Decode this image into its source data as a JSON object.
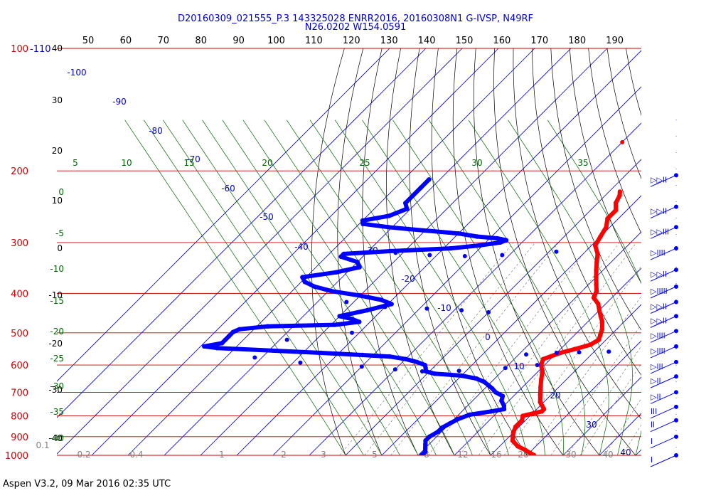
{
  "header": {
    "line1": "D20160309_021555_P.3 143325028 ENRR2016, 20160308N1 G-IVSP, N49RF",
    "line2": "N26.0202 W154.0591"
  },
  "footer": {
    "text": "Aspen V3.2, 09 Mar 2016  02:35 UTC"
  },
  "colors": {
    "temperature": "#ff0000",
    "dewpoint": "#0000ff",
    "isobar": "#cc0000",
    "isotherm": "#0000cc",
    "dry_adiabat": "#000000",
    "moist_adiabat": "#006400",
    "mixing_ratio": "#808080"
  },
  "chart_data": {
    "type": "skew-t",
    "pressure_axis": {
      "levels_hpa": [
        100,
        200,
        300,
        400,
        500,
        600,
        700,
        800,
        900,
        1000
      ],
      "top_tick_extra_label": "-110",
      "altitude_labels_kft": [
        "40",
        "30",
        "20",
        "10",
        "0",
        "-10",
        "-20",
        "-30",
        "-40"
      ]
    },
    "top_axis_labels": [
      "50",
      "60",
      "70",
      "80",
      "90",
      "100",
      "110",
      "120",
      "130",
      "140",
      "150",
      "160",
      "170",
      "180",
      "190"
    ],
    "isotherm_labels": [
      "-100",
      "-90",
      "-80",
      "-70",
      "-60",
      "-50",
      "-40",
      "-30",
      "-20",
      "-10",
      "0",
      "10",
      "20",
      "30",
      "40"
    ],
    "moist_adiabat_labels_top": [
      "5",
      "10",
      "15",
      "20",
      "25",
      "30",
      "35"
    ],
    "moist_adiabat_labels_left": [
      "0",
      "-5",
      "-10",
      "-15",
      "-20",
      "-25",
      "-30",
      "-35",
      "-40"
    ],
    "mixing_ratio_labels": [
      "0.1",
      "0.2",
      "0.4",
      "1",
      "2",
      "3",
      "5",
      "8",
      "12",
      "16",
      "20",
      "30",
      "40"
    ],
    "series": [
      {
        "name": "Temperature",
        "points": [
          [
            225,
            -37
          ],
          [
            230,
            -36
          ],
          [
            240,
            -35
          ],
          [
            250,
            -33
          ],
          [
            262,
            -33
          ],
          [
            275,
            -31
          ],
          [
            290,
            -30
          ],
          [
            305,
            -29
          ],
          [
            320,
            -26
          ],
          [
            335,
            -24
          ],
          [
            350,
            -22
          ],
          [
            365,
            -20
          ],
          [
            380,
            -18
          ],
          [
            395,
            -16
          ],
          [
            410,
            -15
          ],
          [
            425,
            -12
          ],
          [
            440,
            -10
          ],
          [
            455,
            -8
          ],
          [
            470,
            -6
          ],
          [
            490,
            -4
          ],
          [
            505,
            -3
          ],
          [
            520,
            -2
          ],
          [
            535,
            -3
          ],
          [
            548,
            -6
          ],
          [
            560,
            -9
          ],
          [
            580,
            -12
          ],
          [
            600,
            -11
          ],
          [
            620,
            -9
          ],
          [
            650,
            -7
          ],
          [
            680,
            -5
          ],
          [
            710,
            -3
          ],
          [
            740,
            -1
          ],
          [
            770,
            2
          ],
          [
            780,
            2
          ],
          [
            790,
            0
          ],
          [
            800,
            -2
          ],
          [
            820,
            -1
          ],
          [
            850,
            -1
          ],
          [
            880,
            0
          ],
          [
            920,
            2
          ],
          [
            950,
            5
          ],
          [
            970,
            8
          ],
          [
            1000,
            12
          ]
        ],
        "outlier": [
          170,
          -50
        ]
      },
      {
        "name": "Dewpoint",
        "points": [
          [
            210,
            -93
          ],
          [
            220,
            -93
          ],
          [
            240,
            -93
          ],
          [
            248,
            -91
          ],
          [
            258,
            -94
          ],
          [
            265,
            -100
          ],
          [
            270,
            -99
          ],
          [
            275,
            -91
          ],
          [
            278,
            -85
          ],
          [
            285,
            -70
          ],
          [
            290,
            -64
          ],
          [
            293,
            -58
          ],
          [
            296,
            -55
          ],
          [
            300,
            -56
          ],
          [
            305,
            -61
          ],
          [
            310,
            -68
          ],
          [
            315,
            -84
          ],
          [
            320,
            -96
          ],
          [
            325,
            -96
          ],
          [
            335,
            -90
          ],
          [
            345,
            -88
          ],
          [
            355,
            -93
          ],
          [
            365,
            -101
          ],
          [
            375,
            -99
          ],
          [
            385,
            -95
          ],
          [
            395,
            -89
          ],
          [
            405,
            -80
          ],
          [
            415,
            -73
          ],
          [
            425,
            -69
          ],
          [
            440,
            -74
          ],
          [
            455,
            -80
          ],
          [
            462,
            -76
          ],
          [
            470,
            -73
          ],
          [
            478,
            -79
          ],
          [
            482,
            -97
          ],
          [
            490,
            -104
          ],
          [
            498,
            -105
          ],
          [
            510,
            -105
          ],
          [
            520,
            -105
          ],
          [
            530,
            -105
          ],
          [
            540,
            -109
          ],
          [
            545,
            -105
          ],
          [
            560,
            -75
          ],
          [
            567,
            -63
          ],
          [
            572,
            -55
          ],
          [
            580,
            -50
          ],
          [
            590,
            -46
          ],
          [
            600,
            -43
          ],
          [
            610,
            -42
          ],
          [
            622,
            -41
          ],
          [
            630,
            -38
          ],
          [
            637,
            -30
          ],
          [
            648,
            -25
          ],
          [
            660,
            -22
          ],
          [
            672,
            -20
          ],
          [
            685,
            -18
          ],
          [
            700,
            -16
          ],
          [
            715,
            -13
          ],
          [
            735,
            -12
          ],
          [
            755,
            -10
          ],
          [
            770,
            -9
          ],
          [
            780,
            -12
          ],
          [
            795,
            -17
          ],
          [
            815,
            -19
          ],
          [
            835,
            -20
          ],
          [
            855,
            -21
          ],
          [
            875,
            -21
          ],
          [
            900,
            -22
          ],
          [
            920,
            -22
          ],
          [
            940,
            -21
          ],
          [
            960,
            -20
          ],
          [
            980,
            -19
          ],
          [
            1000,
            -19
          ]
        ],
        "sparse_points": [
          [
            318,
            -82
          ],
          [
            322,
            -72
          ],
          [
            324,
            -62
          ],
          [
            322,
            -52
          ],
          [
            316,
            -38
          ],
          [
            420,
            -82
          ],
          [
            432,
            -70
          ],
          [
            436,
            -58
          ],
          [
            440,
            -48
          ],
          [
            445,
            -40
          ],
          [
            500,
            -72
          ],
          [
            520,
            -88
          ],
          [
            575,
            -92
          ],
          [
            592,
            -78
          ],
          [
            605,
            -60
          ],
          [
            615,
            -50
          ],
          [
            622,
            -42
          ],
          [
            620,
            -32
          ],
          [
            610,
            -20
          ],
          [
            600,
            -12
          ],
          [
            565,
            -18
          ],
          [
            560,
            -10
          ],
          [
            558,
            -4
          ],
          [
            556,
            4
          ],
          [
            558,
            14
          ],
          [
            560,
            24
          ],
          [
            565,
            30
          ]
        ]
      }
    ],
    "wind_barbs": [
      {
        "p": 205,
        "barbs": "▷▷ll"
      },
      {
        "p": 245,
        "barbs": "▷▷ll"
      },
      {
        "p": 275,
        "barbs": "▷▷lll"
      },
      {
        "p": 310,
        "barbs": "▷llll"
      },
      {
        "p": 350,
        "barbs": "▷▷ll"
      },
      {
        "p": 385,
        "barbs": "▷lllll"
      },
      {
        "p": 420,
        "barbs": "▷▷ll"
      },
      {
        "p": 455,
        "barbs": "▷▷ll"
      },
      {
        "p": 495,
        "barbs": "▷llll"
      },
      {
        "p": 540,
        "barbs": "▷llll"
      },
      {
        "p": 590,
        "barbs": "▷lll"
      },
      {
        "p": 640,
        "barbs": "▷ll"
      },
      {
        "p": 700,
        "barbs": "▷ll"
      },
      {
        "p": 760,
        "barbs": "lll"
      },
      {
        "p": 820,
        "barbs": "ll"
      },
      {
        "p": 900,
        "barbs": "l"
      },
      {
        "p": 1000,
        "barbs": "l"
      }
    ]
  }
}
